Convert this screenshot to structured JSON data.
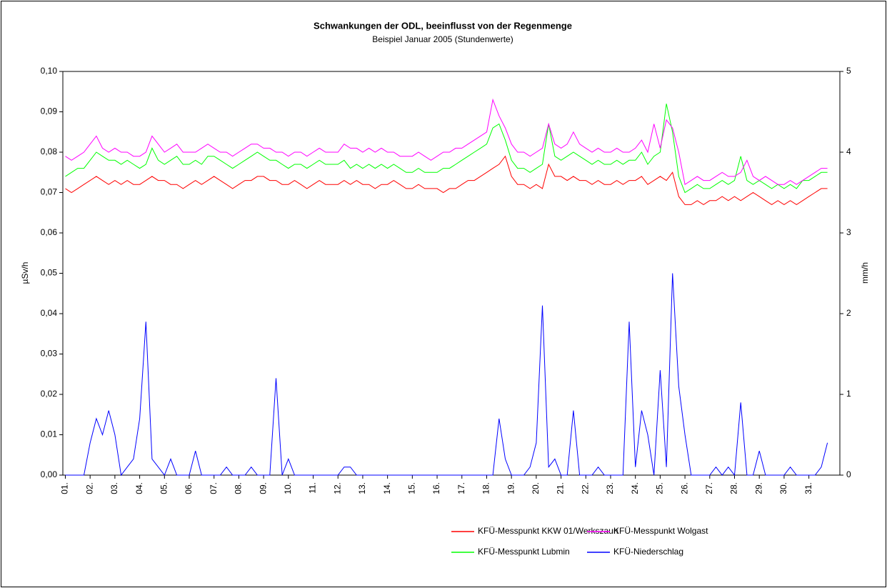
{
  "chart_data": {
    "type": "line",
    "title": "Schwankungen der ODL, beeinflusst von der Regenmenge",
    "subtitle": "Beispiel Januar 2005 (Stundenwerte)",
    "ylabel": "µSv/h",
    "y2label": "mm/h",
    "x": [
      0,
      0.25,
      0.5,
      0.75,
      1,
      1.25,
      1.5,
      1.75,
      2,
      2.25,
      2.5,
      2.75,
      3,
      3.25,
      3.5,
      3.75,
      4,
      4.25,
      4.5,
      4.75,
      5,
      5.25,
      5.5,
      5.75,
      6,
      6.25,
      6.5,
      6.75,
      7,
      7.25,
      7.5,
      7.75,
      8,
      8.25,
      8.5,
      8.75,
      9,
      9.25,
      9.5,
      9.75,
      10,
      10.25,
      10.5,
      10.75,
      11,
      11.25,
      11.5,
      11.75,
      12,
      12.25,
      12.5,
      12.75,
      13,
      13.25,
      13.5,
      13.75,
      14,
      14.25,
      14.5,
      14.75,
      15,
      15.25,
      15.5,
      15.75,
      16,
      16.25,
      16.5,
      16.75,
      17,
      17.25,
      17.5,
      17.75,
      18,
      18.25,
      18.5,
      18.75,
      19,
      19.25,
      19.5,
      19.75,
      20,
      20.25,
      20.5,
      20.75,
      21,
      21.25,
      21.5,
      21.75,
      22,
      22.25,
      22.5,
      22.75,
      23,
      23.25,
      23.5,
      23.75,
      24,
      24.25,
      24.5,
      24.75,
      25,
      25.25,
      25.5,
      25.75,
      26,
      26.25,
      26.5,
      26.75,
      27,
      27.25,
      27.5,
      27.75,
      28,
      28.25,
      28.5,
      28.75,
      29,
      29.25,
      29.5,
      29.75,
      30,
      30.25,
      30.5,
      30.75
    ],
    "xlim": [
      -0.1,
      31.25
    ],
    "xticks": [
      {
        "value": 0,
        "label": "01."
      },
      {
        "value": 1,
        "label": "02."
      },
      {
        "value": 2,
        "label": "03."
      },
      {
        "value": 3,
        "label": "04."
      },
      {
        "value": 4,
        "label": "05."
      },
      {
        "value": 5,
        "label": "06."
      },
      {
        "value": 6,
        "label": "07."
      },
      {
        "value": 7,
        "label": "08."
      },
      {
        "value": 8,
        "label": "09."
      },
      {
        "value": 9,
        "label": "10."
      },
      {
        "value": 10,
        "label": "11."
      },
      {
        "value": 11,
        "label": "12."
      },
      {
        "value": 12,
        "label": "13."
      },
      {
        "value": 13,
        "label": "14."
      },
      {
        "value": 14,
        "label": "15."
      },
      {
        "value": 15,
        "label": "16."
      },
      {
        "value": 16,
        "label": "17."
      },
      {
        "value": 17,
        "label": "18."
      },
      {
        "value": 18,
        "label": "19."
      },
      {
        "value": 19,
        "label": "20."
      },
      {
        "value": 20,
        "label": "21."
      },
      {
        "value": 21,
        "label": "22."
      },
      {
        "value": 22,
        "label": "23."
      },
      {
        "value": 23,
        "label": "24."
      },
      {
        "value": 24,
        "label": "25."
      },
      {
        "value": 25,
        "label": "26."
      },
      {
        "value": 26,
        "label": "27."
      },
      {
        "value": 27,
        "label": "28."
      },
      {
        "value": 28,
        "label": "29."
      },
      {
        "value": 29,
        "label": "30."
      },
      {
        "value": 30,
        "label": "31."
      }
    ],
    "ylim": [
      0,
      0.1
    ],
    "yticks": [
      {
        "value": 0,
        "label": "0,00"
      },
      {
        "value": 0.01,
        "label": "0,01"
      },
      {
        "value": 0.02,
        "label": "0,02"
      },
      {
        "value": 0.03,
        "label": "0,03"
      },
      {
        "value": 0.04,
        "label": "0,04"
      },
      {
        "value": 0.05,
        "label": "0,05"
      },
      {
        "value": 0.06,
        "label": "0,06"
      },
      {
        "value": 0.07,
        "label": "0,07"
      },
      {
        "value": 0.08,
        "label": "0,08"
      },
      {
        "value": 0.09,
        "label": "0,09"
      },
      {
        "value": 0.1,
        "label": "0,10"
      }
    ],
    "y2lim": [
      0,
      5
    ],
    "y2ticks": [
      0,
      1,
      2,
      3,
      4,
      5
    ],
    "series": [
      {
        "name": "KFÜ-Messpunkt KKW 01/Werkszaun",
        "color": "#ff0000",
        "values": [
          0.071,
          0.07,
          0.071,
          0.072,
          0.073,
          0.074,
          0.073,
          0.072,
          0.073,
          0.072,
          0.073,
          0.072,
          0.072,
          0.073,
          0.074,
          0.073,
          0.073,
          0.072,
          0.072,
          0.071,
          0.072,
          0.073,
          0.072,
          0.073,
          0.074,
          0.073,
          0.072,
          0.071,
          0.072,
          0.073,
          0.073,
          0.074,
          0.074,
          0.073,
          0.073,
          0.072,
          0.072,
          0.073,
          0.072,
          0.071,
          0.072,
          0.073,
          0.072,
          0.072,
          0.072,
          0.073,
          0.072,
          0.073,
          0.072,
          0.072,
          0.071,
          0.072,
          0.072,
          0.073,
          0.072,
          0.071,
          0.071,
          0.072,
          0.071,
          0.071,
          0.071,
          0.07,
          0.071,
          0.071,
          0.072,
          0.073,
          0.073,
          0.074,
          0.075,
          0.076,
          0.077,
          0.079,
          0.074,
          0.072,
          0.072,
          0.071,
          0.072,
          0.071,
          0.077,
          0.074,
          0.074,
          0.073,
          0.074,
          0.073,
          0.073,
          0.072,
          0.073,
          0.072,
          0.072,
          0.073,
          0.072,
          0.073,
          0.073,
          0.074,
          0.072,
          0.073,
          0.074,
          0.073,
          0.075,
          0.069,
          0.067,
          0.067,
          0.068,
          0.067,
          0.068,
          0.068,
          0.069,
          0.068,
          0.069,
          0.068,
          0.069,
          0.07,
          0.069,
          0.068,
          0.067,
          0.068,
          0.067,
          0.068,
          0.067,
          0.068,
          0.069,
          0.07,
          0.071,
          0.071
        ]
      },
      {
        "name": "KFÜ-Messpunkt Wolgast",
        "color": "#ff00ff",
        "values": [
          0.079,
          0.078,
          0.079,
          0.08,
          0.082,
          0.084,
          0.081,
          0.08,
          0.081,
          0.08,
          0.08,
          0.079,
          0.079,
          0.08,
          0.084,
          0.082,
          0.08,
          0.081,
          0.082,
          0.08,
          0.08,
          0.08,
          0.081,
          0.082,
          0.081,
          0.08,
          0.08,
          0.079,
          0.08,
          0.081,
          0.082,
          0.082,
          0.081,
          0.081,
          0.08,
          0.08,
          0.079,
          0.08,
          0.08,
          0.079,
          0.08,
          0.081,
          0.08,
          0.08,
          0.08,
          0.082,
          0.081,
          0.081,
          0.08,
          0.081,
          0.08,
          0.081,
          0.08,
          0.08,
          0.079,
          0.079,
          0.079,
          0.08,
          0.079,
          0.078,
          0.079,
          0.08,
          0.08,
          0.081,
          0.081,
          0.082,
          0.083,
          0.084,
          0.085,
          0.093,
          0.089,
          0.086,
          0.082,
          0.08,
          0.08,
          0.079,
          0.08,
          0.081,
          0.087,
          0.082,
          0.081,
          0.082,
          0.085,
          0.082,
          0.081,
          0.08,
          0.081,
          0.08,
          0.08,
          0.081,
          0.08,
          0.08,
          0.081,
          0.083,
          0.08,
          0.087,
          0.081,
          0.088,
          0.086,
          0.08,
          0.072,
          0.073,
          0.074,
          0.073,
          0.073,
          0.074,
          0.075,
          0.074,
          0.074,
          0.075,
          0.078,
          0.074,
          0.073,
          0.074,
          0.073,
          0.072,
          0.072,
          0.073,
          0.072,
          0.073,
          0.074,
          0.075,
          0.076,
          0.076
        ]
      },
      {
        "name": "KFÜ-Messpunkt Lubmin",
        "color": "#00ff00",
        "values": [
          0.074,
          0.075,
          0.076,
          0.076,
          0.078,
          0.08,
          0.079,
          0.078,
          0.078,
          0.077,
          0.078,
          0.077,
          0.076,
          0.077,
          0.081,
          0.078,
          0.077,
          0.078,
          0.079,
          0.077,
          0.077,
          0.078,
          0.077,
          0.079,
          0.079,
          0.078,
          0.077,
          0.076,
          0.077,
          0.078,
          0.079,
          0.08,
          0.079,
          0.078,
          0.078,
          0.077,
          0.076,
          0.077,
          0.077,
          0.076,
          0.077,
          0.078,
          0.077,
          0.077,
          0.077,
          0.078,
          0.076,
          0.077,
          0.076,
          0.077,
          0.076,
          0.077,
          0.076,
          0.077,
          0.076,
          0.075,
          0.075,
          0.076,
          0.075,
          0.075,
          0.075,
          0.076,
          0.076,
          0.077,
          0.078,
          0.079,
          0.08,
          0.081,
          0.082,
          0.086,
          0.087,
          0.083,
          0.078,
          0.076,
          0.076,
          0.075,
          0.076,
          0.077,
          0.087,
          0.079,
          0.078,
          0.079,
          0.08,
          0.079,
          0.078,
          0.077,
          0.078,
          0.077,
          0.077,
          0.078,
          0.077,
          0.078,
          0.078,
          0.08,
          0.077,
          0.079,
          0.08,
          0.092,
          0.085,
          0.074,
          0.07,
          0.071,
          0.072,
          0.071,
          0.071,
          0.072,
          0.073,
          0.072,
          0.073,
          0.079,
          0.073,
          0.072,
          0.073,
          0.072,
          0.071,
          0.072,
          0.071,
          0.072,
          0.071,
          0.073,
          0.073,
          0.074,
          0.075,
          0.075
        ]
      },
      {
        "name": "KFÜ-Niederschlag",
        "color": "#0000ff",
        "axis": "y2",
        "values": [
          0,
          0,
          0,
          0,
          0.4,
          0.7,
          0.5,
          0.8,
          0.5,
          0,
          0.1,
          0.2,
          0.7,
          1.9,
          0.2,
          0.1,
          0,
          0.2,
          0,
          0,
          0,
          0.3,
          0,
          0,
          0,
          0,
          0.1,
          0,
          0,
          0,
          0.1,
          0,
          0,
          0,
          1.2,
          0,
          0.2,
          0,
          0,
          0,
          0,
          0,
          0,
          0,
          0,
          0.1,
          0.1,
          0,
          0,
          0,
          0,
          0,
          0,
          0,
          0,
          0,
          0,
          0,
          0,
          0,
          0,
          0,
          0,
          0,
          0,
          0,
          0,
          0,
          0,
          0,
          0.7,
          0.2,
          0,
          0,
          0,
          0.1,
          0.4,
          2.1,
          0.1,
          0.2,
          0,
          0,
          0.8,
          0,
          0,
          0,
          0.1,
          0,
          0,
          0,
          0,
          1.9,
          0.1,
          0.8,
          0.5,
          0,
          1.3,
          0.1,
          2.5,
          1.1,
          0.5,
          0,
          0,
          0,
          0,
          0.1,
          0,
          0.1,
          0,
          0.9,
          0,
          0,
          0.3,
          0,
          0,
          0,
          0,
          0.1,
          0,
          0,
          0,
          0,
          0.1,
          0.4
        ]
      }
    ],
    "legend": "bottom-right"
  }
}
